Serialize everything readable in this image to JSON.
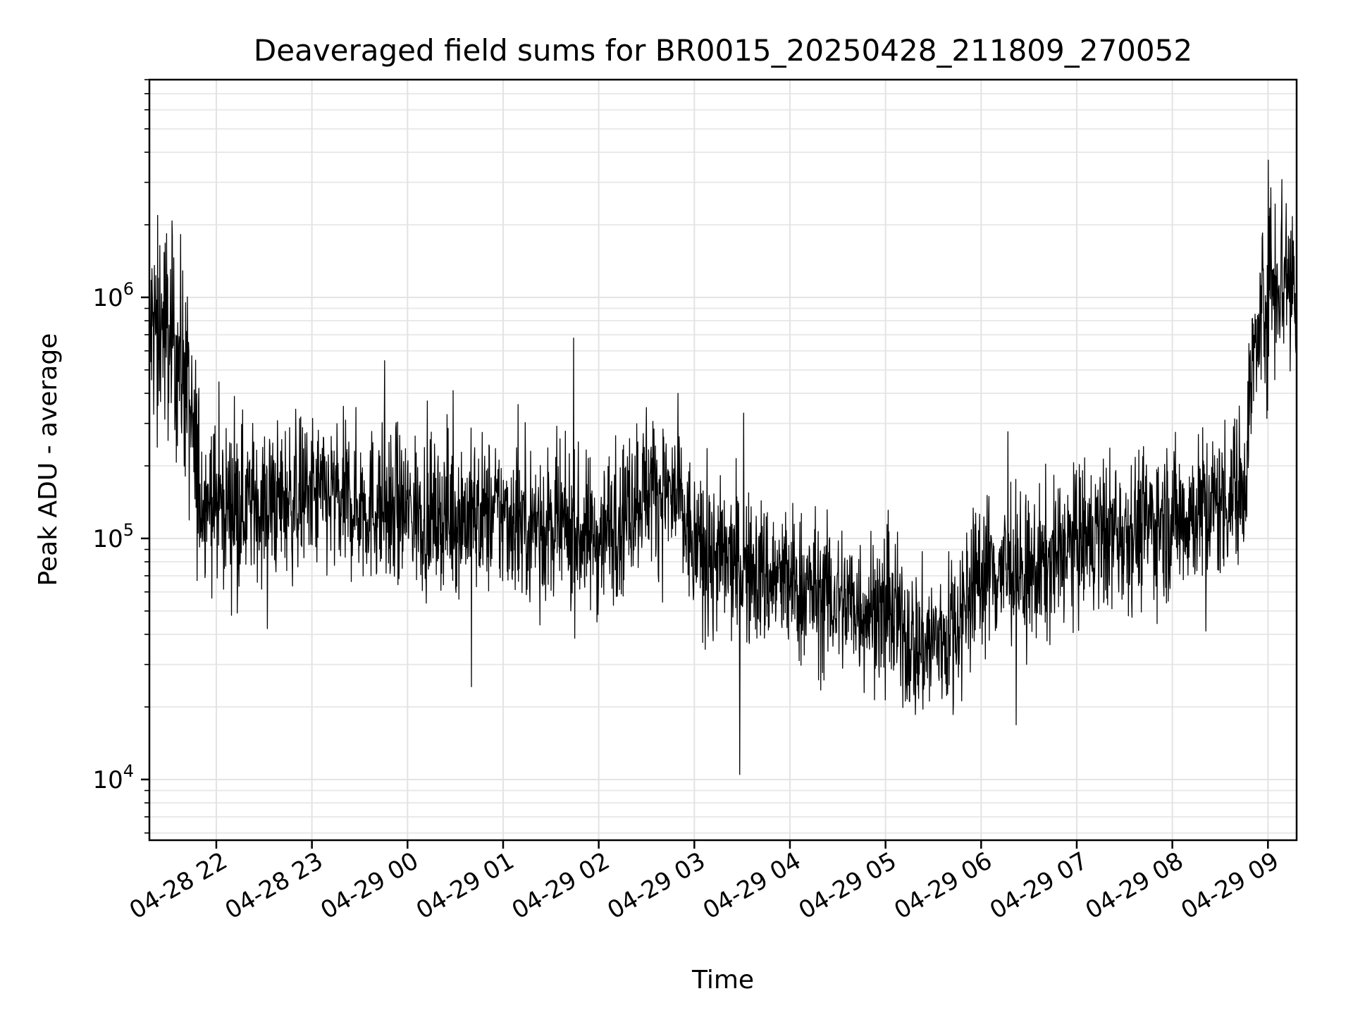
{
  "chart_data": {
    "type": "line",
    "title": "Deaveraged field sums for BR0015_20250428_211809_270052",
    "xlabel": "Time",
    "ylabel": "Peak ADU - average",
    "yscale": "log",
    "ylim": [
      5600,
      8000000
    ],
    "xlim": [
      "04-28 21:18",
      "04-29 09:18"
    ],
    "grid": true,
    "color": "#000000",
    "x_ticks": [
      "04-28 22",
      "04-28 23",
      "04-29 00",
      "04-29 01",
      "04-29 02",
      "04-29 03",
      "04-29 04",
      "04-29 05",
      "04-29 06",
      "04-29 07",
      "04-29 08",
      "04-29 09"
    ],
    "y_ticks": [
      {
        "value": 10000,
        "base": "10",
        "exp": "4"
      },
      {
        "value": 100000,
        "base": "10",
        "exp": "5"
      },
      {
        "value": 1000000,
        "base": "10",
        "exp": "6"
      }
    ],
    "series": [
      {
        "x": [
          "04-28 21:18",
          "04-28 21:25",
          "04-28 21:35",
          "04-28 21:40",
          "04-28 21:45",
          "04-28 21:50",
          "04-28 22:00",
          "04-28 22:30",
          "04-28 23:00",
          "04-28 23:30",
          "04-29 00:00",
          "04-29 00:30",
          "04-29 01:00",
          "04-29 01:30",
          "04-29 02:00",
          "04-29 02:30",
          "04-29 02:50",
          "04-29 03:00",
          "04-29 03:30",
          "04-29 04:00",
          "04-29 04:30",
          "04-29 05:00",
          "04-29 05:20",
          "04-29 05:40",
          "04-29 06:00",
          "04-29 06:30",
          "04-29 07:00",
          "04-29 07:30",
          "04-29 08:00",
          "04-29 08:30",
          "04-29 08:45",
          "04-29 08:50",
          "04-29 09:00",
          "04-29 09:10",
          "04-29 09:18"
        ],
        "y": [
          700000,
          800000,
          600000,
          500000,
          250000,
          160000,
          140000,
          140000,
          150000,
          140000,
          130000,
          125000,
          125000,
          110000,
          100000,
          170000,
          140000,
          90000,
          75000,
          65000,
          55000,
          50000,
          35000,
          40000,
          75000,
          70000,
          95000,
          110000,
          120000,
          140000,
          170000,
          500000,
          1200000,
          1300000,
          1100000
        ]
      }
    ]
  }
}
